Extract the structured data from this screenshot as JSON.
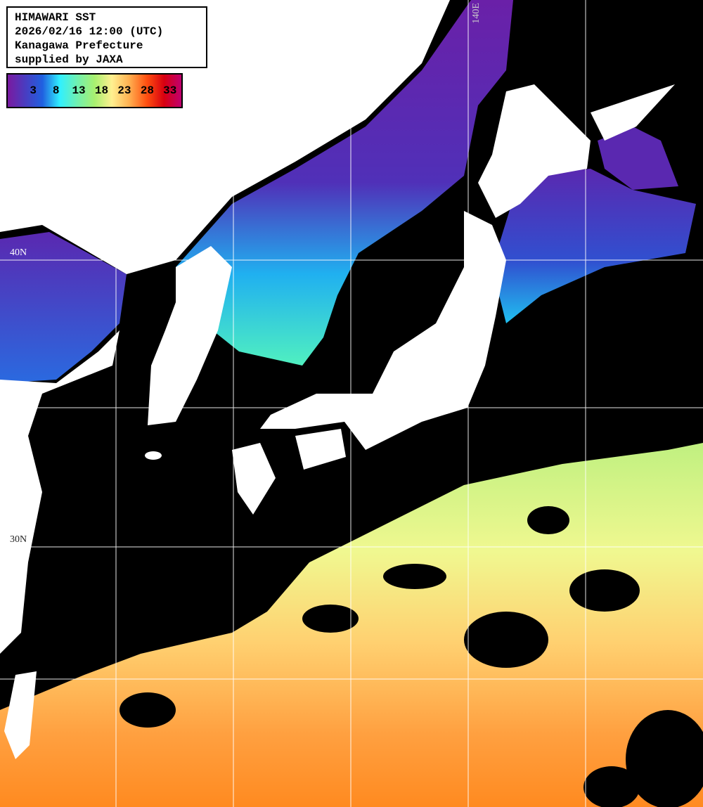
{
  "title": {
    "lines": [
      "HIMAWARI SST",
      "2026/02/16 12:00 (UTC)",
      "Kanagawa Prefecture",
      "supplied by JAXA"
    ]
  },
  "colorbar": {
    "ticks": [
      "3",
      "8",
      "13",
      "18",
      "23",
      "28",
      "33"
    ],
    "colors": [
      "#7a1aa0",
      "#2060e0",
      "#30f0ff",
      "#a8f070",
      "#fff090",
      "#ff5010",
      "#d80010",
      "#c00070"
    ]
  },
  "grid_labels": {
    "lon": "140E",
    "lat_north": "40N",
    "lat_south": "30N"
  },
  "colors": {
    "land": "#ffffff",
    "no_data": "#000000",
    "grid": "#ffffff"
  }
}
